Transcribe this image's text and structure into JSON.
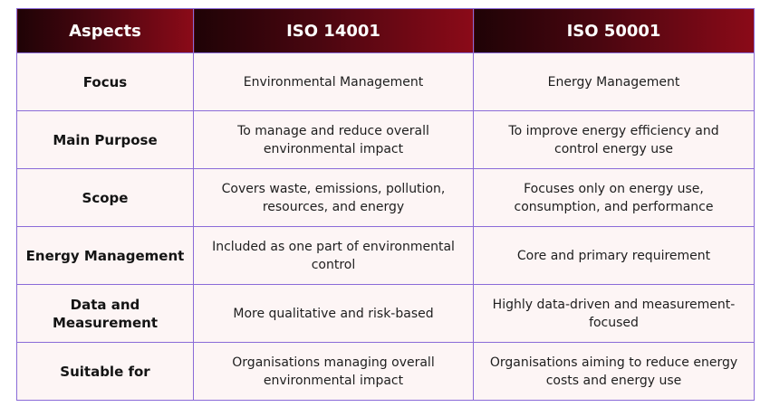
{
  "table": {
    "headers": [
      "Aspects",
      "ISO 14001",
      "ISO 50001"
    ],
    "rows": [
      {
        "aspect": "Focus",
        "iso14001": "Environmental Management",
        "iso50001": "Energy Management"
      },
      {
        "aspect": "Main Purpose",
        "iso14001": "To manage and reduce overall environmental impact",
        "iso50001": "To improve energy efficiency and control energy use"
      },
      {
        "aspect": "Scope",
        "iso14001": "Covers waste, emissions, pollution, resources, and energy",
        "iso50001": "Focuses only on energy use, consumption, and performance"
      },
      {
        "aspect": "Energy Management",
        "iso14001": "Included as one part of environmental control",
        "iso50001": "Core and primary requirement"
      },
      {
        "aspect": "Data and Measurement",
        "iso14001": "More qualitative and risk-based",
        "iso50001": "Highly data-driven and measurement-focused"
      },
      {
        "aspect": "Suitable for",
        "iso14001": "Organisations managing overall environmental impact",
        "iso50001": "Organisations aiming to reduce energy costs and energy use"
      }
    ]
  },
  "colors": {
    "header_dark": "#1f0306",
    "header_light": "#8b0a18",
    "border": "#8a6bd8",
    "cell_background": "#fdf5f5"
  }
}
